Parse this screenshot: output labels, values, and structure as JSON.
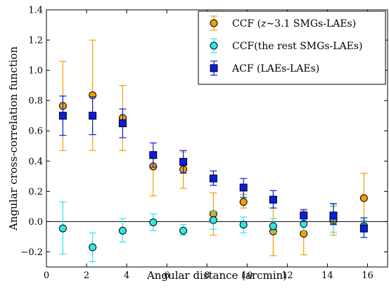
{
  "chart_data": {
    "type": "scatter",
    "xlabel": "Angular distance (arcmin)",
    "ylabel": "Angular cross-correlation function",
    "xlim": [
      0,
      17
    ],
    "ylim": [
      -0.3,
      1.4
    ],
    "xticks": [
      0,
      2,
      4,
      6,
      8,
      10,
      12,
      14,
      16
    ],
    "yticks": [
      -0.2,
      0.0,
      0.2,
      0.4,
      0.6,
      0.8,
      1.0,
      1.2,
      1.4
    ],
    "xtick_labels": [
      "0",
      "2",
      "4",
      "6",
      "8",
      "10",
      "12",
      "14",
      "16"
    ],
    "ytick_labels": [
      "−0.2",
      "0.0",
      "0.2",
      "0.4",
      "0.6",
      "0.8",
      "1.0",
      "1.2",
      "1.4"
    ],
    "reference_line_y": 0.0,
    "grid": false,
    "legend_position": "top-right",
    "series": [
      {
        "name": "CCF (z∼3.1 SMGs-LAEs)",
        "legend_prefix": "CCF (",
        "legend_italic": "z",
        "legend_suffix": "∼3.1 SMGs-LAEs)",
        "marker": "circle",
        "color": "#f4a000",
        "edge": "#000000",
        "points": [
          {
            "x": 0.82,
            "y": 0.765,
            "lo": 0.47,
            "hi": 1.06
          },
          {
            "x": 2.3,
            "y": 0.835,
            "lo": 0.47,
            "hi": 1.2
          },
          {
            "x": 3.8,
            "y": 0.685,
            "lo": 0.47,
            "hi": 0.9
          },
          {
            "x": 5.32,
            "y": 0.365,
            "lo": 0.17,
            "hi": 0.46
          },
          {
            "x": 6.82,
            "y": 0.345,
            "lo": 0.22,
            "hi": 0.46
          },
          {
            "x": 8.32,
            "y": 0.05,
            "lo": -0.09,
            "hi": 0.19
          },
          {
            "x": 9.82,
            "y": 0.13,
            "lo": 0.09,
            "hi": 0.18
          },
          {
            "x": 11.3,
            "y": -0.065,
            "lo": -0.225,
            "hi": 0.09
          },
          {
            "x": 12.82,
            "y": -0.08,
            "lo": -0.22,
            "hi": 0.07
          },
          {
            "x": 14.3,
            "y": 0.005,
            "lo": -0.09,
            "hi": 0.1
          },
          {
            "x": 15.82,
            "y": 0.155,
            "lo": -0.01,
            "hi": 0.32
          }
        ]
      },
      {
        "name": "CCF(the rest SMGs-LAEs)",
        "marker": "circle",
        "color": "#2de8e8",
        "edge": "#000000",
        "points": [
          {
            "x": 0.82,
            "y": -0.045,
            "lo": -0.215,
            "hi": 0.13
          },
          {
            "x": 2.3,
            "y": -0.17,
            "lo": -0.265,
            "hi": -0.075
          },
          {
            "x": 3.8,
            "y": -0.06,
            "lo": -0.135,
            "hi": 0.02
          },
          {
            "x": 5.32,
            "y": -0.005,
            "lo": -0.06,
            "hi": 0.05
          },
          {
            "x": 6.82,
            "y": -0.06,
            "lo": -0.09,
            "hi": -0.02
          },
          {
            "x": 8.32,
            "y": 0.01,
            "lo": -0.05,
            "hi": 0.07
          },
          {
            "x": 9.82,
            "y": -0.02,
            "lo": -0.075,
            "hi": 0.03
          },
          {
            "x": 11.3,
            "y": -0.03,
            "lo": -0.07,
            "hi": 0.02
          },
          {
            "x": 12.82,
            "y": -0.015,
            "lo": -0.06,
            "hi": 0.02
          },
          {
            "x": 14.3,
            "y": 0.02,
            "lo": -0.07,
            "hi": 0.11
          },
          {
            "x": 15.82,
            "y": -0.03,
            "lo": -0.07,
            "hi": 0.01
          }
        ]
      },
      {
        "name": "ACF (LAEs-LAEs)",
        "marker": "square",
        "color": "#0a1ee0",
        "edge": "#000000",
        "points": [
          {
            "x": 0.82,
            "y": 0.7,
            "lo": 0.57,
            "hi": 0.83
          },
          {
            "x": 2.3,
            "y": 0.7,
            "lo": 0.575,
            "hi": 0.825
          },
          {
            "x": 3.8,
            "y": 0.65,
            "lo": 0.555,
            "hi": 0.745
          },
          {
            "x": 5.32,
            "y": 0.44,
            "lo": 0.36,
            "hi": 0.52
          },
          {
            "x": 6.82,
            "y": 0.395,
            "lo": 0.32,
            "hi": 0.47
          },
          {
            "x": 8.32,
            "y": 0.285,
            "lo": 0.24,
            "hi": 0.335
          },
          {
            "x": 9.82,
            "y": 0.225,
            "lo": 0.16,
            "hi": 0.285
          },
          {
            "x": 11.3,
            "y": 0.145,
            "lo": 0.09,
            "hi": 0.205
          },
          {
            "x": 12.82,
            "y": 0.04,
            "lo": 0.0,
            "hi": 0.08
          },
          {
            "x": 14.3,
            "y": 0.04,
            "lo": -0.02,
            "hi": 0.12
          },
          {
            "x": 15.82,
            "y": -0.045,
            "lo": -0.105,
            "hi": 0.025
          }
        ]
      }
    ]
  }
}
